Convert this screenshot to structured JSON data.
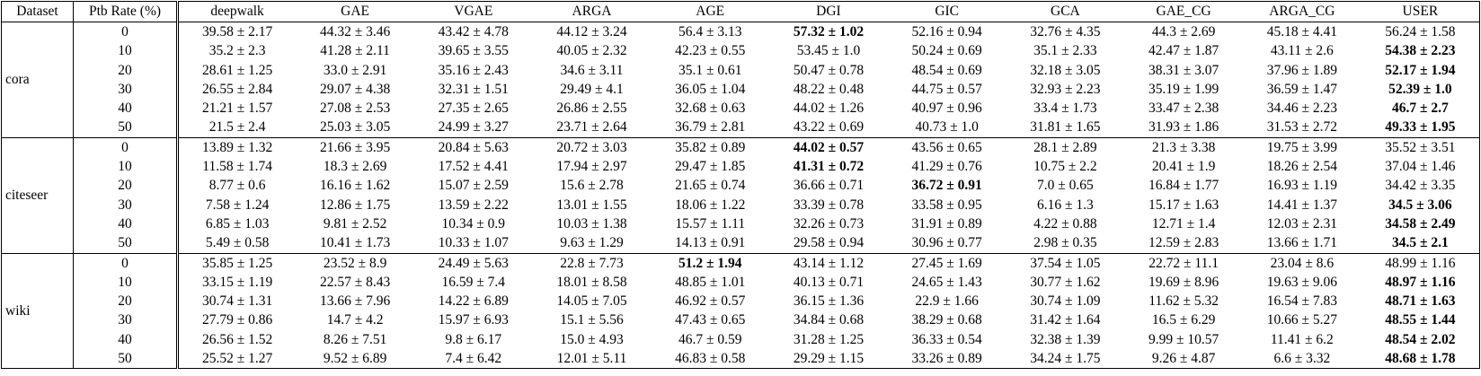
{
  "table": {
    "header": [
      "Dataset",
      "Ptb Rate (%)",
      "deepwalk",
      "GAE",
      "VGAE",
      "ARGA",
      "AGE",
      "DGI",
      "GIC",
      "GCA",
      "GAE_CG",
      "ARGA_CG",
      "USER"
    ],
    "groups": [
      {
        "name": "cora",
        "rows": [
          {
            "ptb": "0",
            "cells": [
              "39.58 ± 2.17",
              "44.32 ± 3.46",
              "43.42 ± 4.78",
              "44.12 ± 3.24",
              "56.4 ± 3.13",
              {
                "text": "57.32 ± 1.02",
                "bold": true
              },
              "52.16 ± 0.94",
              "32.76 ± 4.35",
              "44.3 ± 2.69",
              "45.18 ± 4.41",
              "56.24 ± 1.58"
            ]
          },
          {
            "ptb": "10",
            "cells": [
              "35.2 ± 2.3",
              "41.28 ± 2.11",
              "39.65 ± 3.55",
              "40.05 ± 2.32",
              "42.23 ± 0.55",
              "53.45 ± 1.0",
              "50.24 ± 0.69",
              "35.1 ± 2.33",
              "42.47 ± 1.87",
              "43.11 ± 2.6",
              {
                "text": "54.38 ± 2.23",
                "bold": true
              }
            ]
          },
          {
            "ptb": "20",
            "cells": [
              "28.61 ± 1.25",
              "33.0 ± 2.91",
              "35.16 ± 2.43",
              "34.6 ± 3.11",
              "35.1 ± 0.61",
              "50.47 ± 0.78",
              "48.54 ± 0.69",
              "32.18 ± 3.05",
              "38.31 ± 3.07",
              "37.96 ± 1.89",
              {
                "text": "52.17 ± 1.94",
                "bold": true
              }
            ]
          },
          {
            "ptb": "30",
            "cells": [
              "26.55 ± 2.84",
              "29.07 ± 4.38",
              "32.31 ± 1.51",
              "29.49 ± 4.1",
              "36.05 ± 1.04",
              "48.22 ± 0.48",
              "44.75 ± 0.57",
              "32.93 ± 2.23",
              "35.19 ± 1.99",
              "36.59 ± 1.47",
              {
                "text": "52.39 ± 1.0",
                "bold": true
              }
            ]
          },
          {
            "ptb": "40",
            "cells": [
              "21.21 ± 1.57",
              "27.08 ± 2.53",
              "27.35 ± 2.65",
              "26.86 ± 2.55",
              "32.68 ± 0.63",
              "44.02 ± 1.26",
              "40.97 ± 0.96",
              "33.4 ± 1.73",
              "33.47 ± 2.38",
              "34.46 ± 2.23",
              {
                "text": "46.7 ± 2.7",
                "bold": true
              }
            ]
          },
          {
            "ptb": "50",
            "cells": [
              "21.5 ± 2.4",
              "25.03 ± 3.05",
              "24.99 ± 3.27",
              "23.71 ± 2.64",
              "36.79 ± 2.81",
              "43.22 ± 0.69",
              "40.73 ± 1.0",
              "31.81 ± 1.65",
              "31.93 ± 1.86",
              "31.53 ± 2.72",
              {
                "text": "49.33 ± 1.95",
                "bold": true
              }
            ]
          }
        ]
      },
      {
        "name": "citeseer",
        "rows": [
          {
            "ptb": "0",
            "cells": [
              "13.89 ± 1.32",
              "21.66 ± 3.95",
              "20.84 ± 5.63",
              "20.72 ± 3.03",
              "35.82 ± 0.89",
              {
                "text": "44.02 ± 0.57",
                "bold": true
              },
              "43.56 ± 0.65",
              "28.1 ± 2.89",
              "21.3 ± 3.38",
              "19.75 ± 3.99",
              "35.52 ± 3.51"
            ]
          },
          {
            "ptb": "10",
            "cells": [
              "11.58 ± 1.74",
              "18.3 ± 2.69",
              "17.52 ± 4.41",
              "17.94 ± 2.97",
              "29.47 ± 1.85",
              {
                "text": "41.31 ± 0.72",
                "bold": true
              },
              "41.29 ± 0.76",
              "10.75 ± 2.2",
              "20.41 ± 1.9",
              "18.26 ± 2.54",
              "37.04 ± 1.46"
            ]
          },
          {
            "ptb": "20",
            "cells": [
              "8.77 ± 0.6",
              "16.16 ± 1.62",
              "15.07 ± 2.59",
              "15.6 ± 2.78",
              "21.65 ± 0.74",
              "36.66 ± 0.71",
              {
                "text": "36.72 ± 0.91",
                "bold": true
              },
              "7.0 ± 0.65",
              "16.84 ± 1.77",
              "16.93 ± 1.19",
              "34.42 ± 3.35"
            ]
          },
          {
            "ptb": "30",
            "cells": [
              "7.58 ± 1.24",
              "12.86 ± 1.75",
              "13.59 ± 2.22",
              "13.01 ± 1.55",
              "18.06 ± 1.22",
              "33.39 ± 0.78",
              "33.58 ± 0.95",
              "6.16 ± 1.3",
              "15.17 ± 1.63",
              "14.41 ± 1.37",
              {
                "text": "34.5 ± 3.06",
                "bold": true
              }
            ]
          },
          {
            "ptb": "40",
            "cells": [
              "6.85 ± 1.03",
              "9.81 ± 2.52",
              "10.34 ± 0.9",
              "10.03 ± 1.38",
              "15.57 ± 1.11",
              "32.26 ± 0.73",
              "31.91 ± 0.89",
              "4.22 ± 0.88",
              "12.71 ± 1.4",
              "12.03 ± 2.31",
              {
                "text": "34.58 ± 2.49",
                "bold": true
              }
            ]
          },
          {
            "ptb": "50",
            "cells": [
              "5.49 ± 0.58",
              "10.41 ± 1.73",
              "10.33 ± 1.07",
              "9.63 ± 1.29",
              "14.13 ± 0.91",
              "29.58 ± 0.94",
              "30.96 ± 0.77",
              "2.98 ± 0.35",
              "12.59 ± 2.83",
              "13.66 ± 1.71",
              {
                "text": "34.5 ± 2.1",
                "bold": true
              }
            ]
          }
        ]
      },
      {
        "name": "wiki",
        "rows": [
          {
            "ptb": "0",
            "cells": [
              "35.85 ± 1.25",
              "23.52 ± 8.9",
              "24.49 ± 5.63",
              "22.8 ± 7.73",
              {
                "text": "51.2 ± 1.94",
                "bold": true
              },
              "43.14 ± 1.12",
              "27.45 ± 1.69",
              "37.54 ± 1.05",
              "22.72 ± 11.1",
              "23.04 ± 8.6",
              "48.99 ± 1.16"
            ]
          },
          {
            "ptb": "10",
            "cells": [
              "33.15 ± 1.19",
              "22.57 ± 8.43",
              "16.59 ± 7.4",
              "18.01 ± 8.58",
              "48.85 ± 1.01",
              "40.13 ± 0.71",
              "24.65 ± 1.43",
              "30.77 ± 1.62",
              "19.69 ± 8.96",
              "19.63 ± 9.06",
              {
                "text": "48.97 ± 1.16",
                "bold": true
              }
            ]
          },
          {
            "ptb": "20",
            "cells": [
              "30.74 ± 1.31",
              "13.66 ± 7.96",
              "14.22 ± 6.89",
              "14.05 ± 7.05",
              "46.92 ± 0.57",
              "36.15 ± 1.36",
              "22.9 ± 1.66",
              "30.74 ± 1.09",
              "11.62 ± 5.32",
              "16.54 ± 7.83",
              {
                "text": "48.71 ± 1.63",
                "bold": true
              }
            ]
          },
          {
            "ptb": "30",
            "cells": [
              "27.79 ± 0.86",
              "14.7 ± 4.2",
              "15.97 ± 6.93",
              "15.1 ± 5.56",
              "47.43 ± 0.65",
              "34.84 ± 0.68",
              "38.29 ± 0.68",
              "31.42 ± 1.64",
              "16.5 ± 6.29",
              "10.66 ± 5.27",
              {
                "text": "48.55 ± 1.44",
                "bold": true
              }
            ]
          },
          {
            "ptb": "40",
            "cells": [
              "26.56 ± 1.52",
              "8.26 ± 7.51",
              "9.8 ± 6.17",
              "15.0 ± 4.93",
              "46.7 ± 0.59",
              "31.28 ± 1.25",
              "36.33 ± 0.54",
              "32.38 ± 1.39",
              "9.99 ± 10.57",
              "11.41 ± 6.2",
              {
                "text": "48.54 ± 2.02",
                "bold": true
              }
            ]
          },
          {
            "ptb": "50",
            "cells": [
              "25.52 ± 1.27",
              "9.52 ± 6.89",
              "7.4 ± 6.42",
              "12.01 ± 5.11",
              "46.83 ± 0.58",
              "29.29 ± 1.15",
              "33.26 ± 0.89",
              "34.24 ± 1.75",
              "9.26 ± 4.87",
              "6.6 ± 3.32",
              {
                "text": "48.68 ± 1.78",
                "bold": true
              }
            ]
          }
        ]
      }
    ]
  }
}
